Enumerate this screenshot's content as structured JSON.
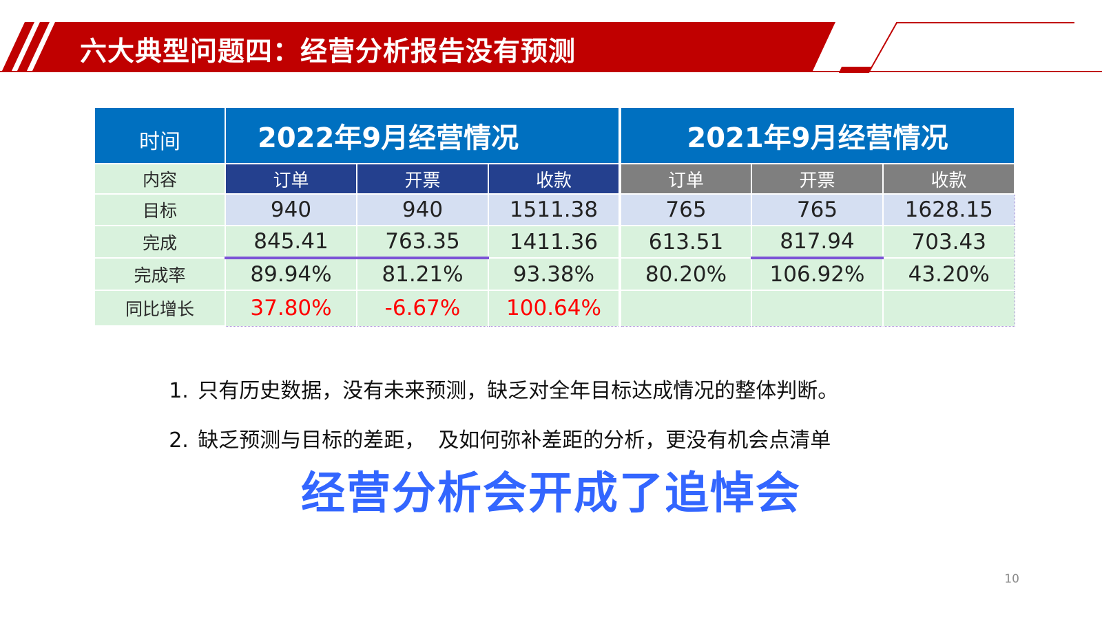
{
  "header": {
    "title": "六大典型问题四：经营分析报告没有预测",
    "brand_color": "#c00000"
  },
  "table": {
    "time_label": "时间",
    "content_label": "内容",
    "year_2022": "2022年9月经营情况",
    "year_2021": "2021年9月经营情况",
    "metrics_2022": [
      "订单",
      "开票",
      "收款"
    ],
    "metrics_2021": [
      "订单",
      "开票",
      "收款"
    ],
    "rows": [
      {
        "label": "目标",
        "values": [
          "940",
          "940",
          "1511.38",
          "765",
          "765",
          "1628.15"
        ]
      },
      {
        "label": "完成",
        "values": [
          "845.41",
          "763.35",
          "1411.36",
          "613.51",
          "817.94",
          "703.43"
        ]
      },
      {
        "label": "完成率",
        "values": [
          "89.94%",
          "81.21%",
          "93.38%",
          "80.20%",
          "106.92%",
          "43.20%"
        ]
      },
      {
        "label": "同比增长",
        "values": [
          "37.80%",
          "-6.67%",
          "100.64%",
          "",
          "",
          ""
        ]
      }
    ]
  },
  "bullets": [
    {
      "num": "1.",
      "text": "只有历史数据，没有未来预测，缺乏对全年目标达成情况的整体判断。"
    },
    {
      "num": "2.",
      "text": "缺乏预测与目标的差距，  及如何弥补差距的分析，更没有机会点清单"
    }
  ],
  "slogan": "经营分析会开成了追悼会",
  "page_number": "10"
}
